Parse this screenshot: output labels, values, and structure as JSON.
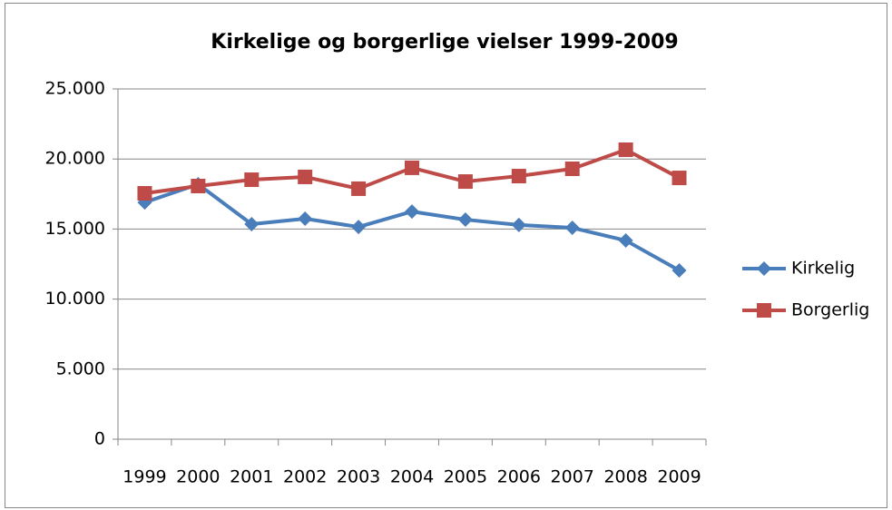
{
  "chart_data": {
    "type": "line",
    "title": "Kirkelige og borgerlige vielser 1999-2009",
    "categories": [
      "1999",
      "2000",
      "2001",
      "2002",
      "2003",
      "2004",
      "2005",
      "2006",
      "2007",
      "2008",
      "2009"
    ],
    "series": [
      {
        "name": "Kirkelig",
        "color": "#4a7ebb",
        "marker": "diamond",
        "values": [
          16900,
          18200,
          15350,
          15740,
          15150,
          16250,
          15670,
          15290,
          15090,
          14180,
          12050
        ]
      },
      {
        "name": "Borgerlig",
        "color": "#be4b48",
        "marker": "square",
        "values": [
          17550,
          18070,
          18520,
          18720,
          17880,
          19370,
          18390,
          18780,
          19300,
          20660,
          18650
        ]
      }
    ],
    "ylim": [
      0,
      25000
    ],
    "yticks": [
      0,
      {
        "value": 5000,
        "label": "5.000"
      },
      {
        "value": 10000,
        "label": "10.000"
      },
      {
        "value": 15000,
        "label": "15.000"
      },
      {
        "value": 20000,
        "label": "20.000"
      },
      {
        "value": 25000,
        "label": "25.000"
      }
    ],
    "grid": true,
    "legend": "right"
  }
}
